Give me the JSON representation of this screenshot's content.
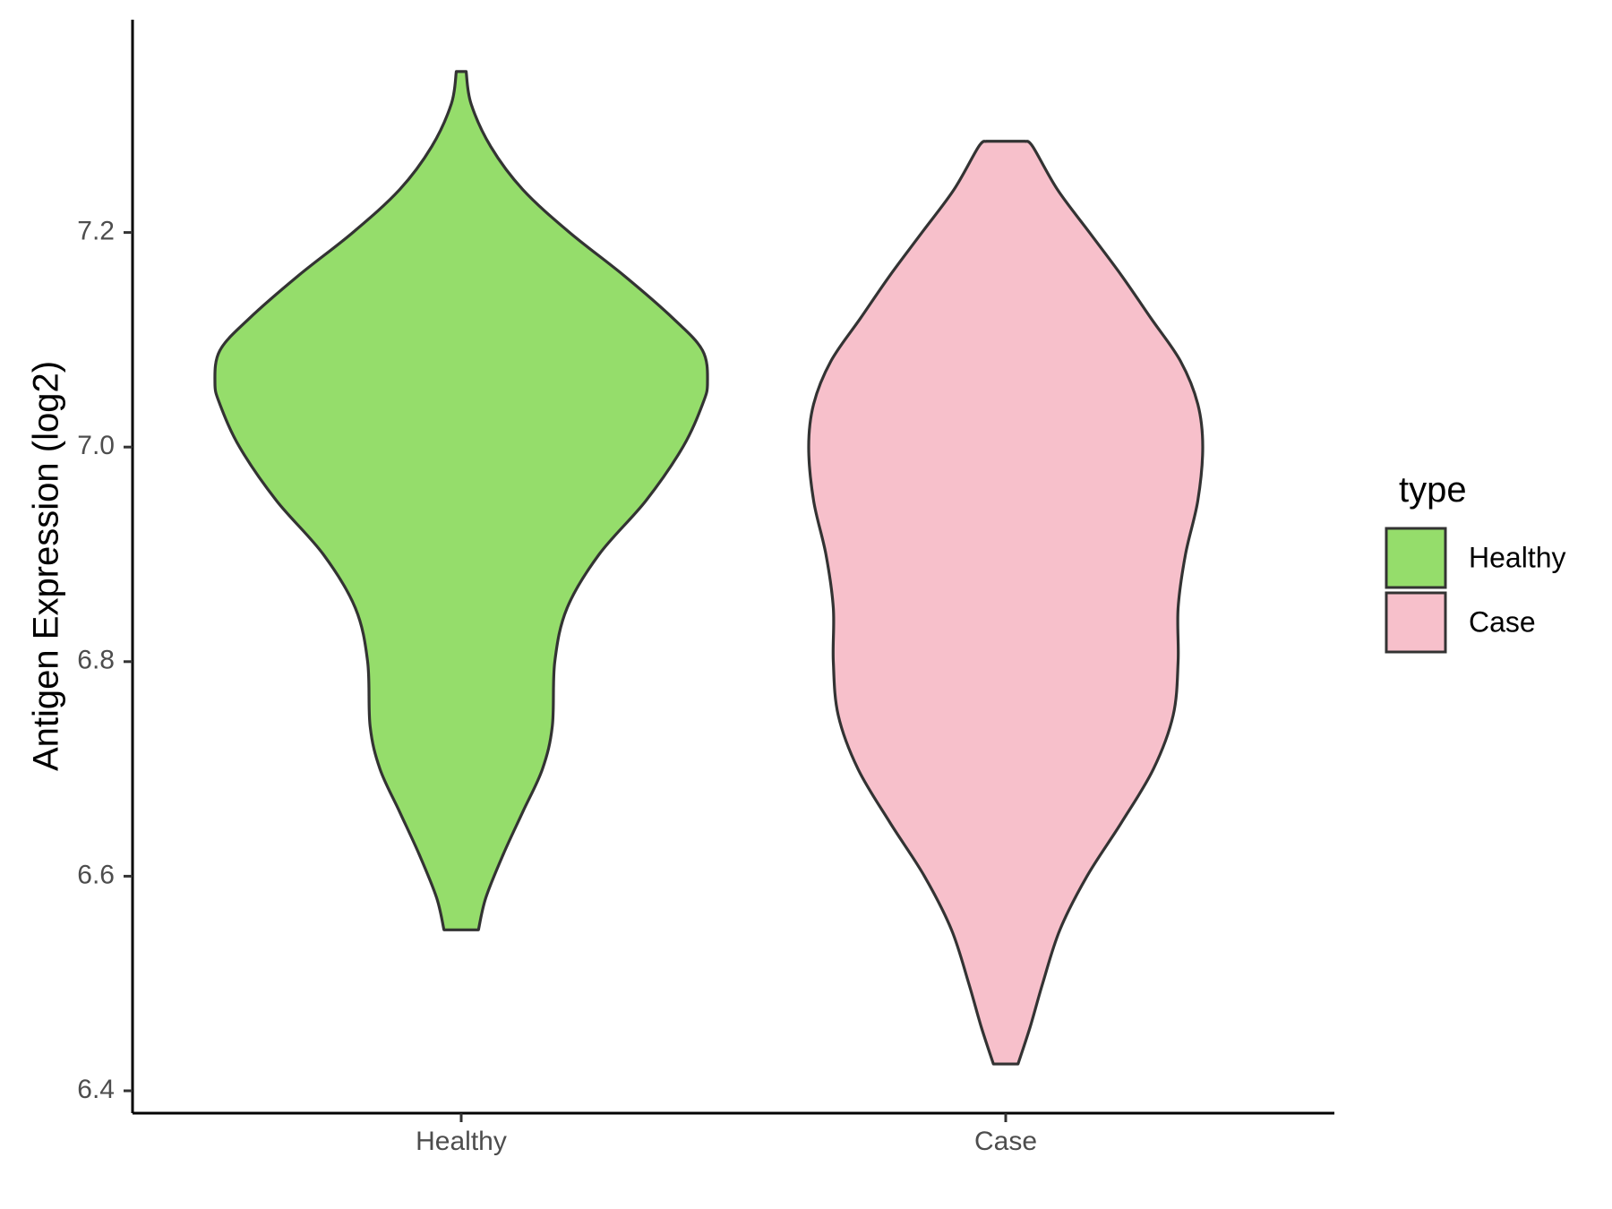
{
  "chart_data": {
    "type": "violin",
    "ylabel": "Antigen Expression (log2)",
    "xlabel": "",
    "ylim": [
      6.38,
      7.4
    ],
    "y_ticks": [
      6.4,
      6.6,
      6.8,
      7.0,
      7.2
    ],
    "y_tick_labels": [
      "6.4",
      "6.6",
      "6.8",
      "7.0",
      "7.2"
    ],
    "categories": [
      "Healthy",
      "Case"
    ],
    "grid": false,
    "legend": {
      "title": "type",
      "placement": "right",
      "entries": [
        {
          "label": "Healthy",
          "color": "#95dd6b"
        },
        {
          "label": "Case",
          "color": "#f7c0cb"
        }
      ]
    },
    "series": [
      {
        "name": "Healthy",
        "color": "#95dd6b",
        "min": 6.55,
        "max": 7.35,
        "profile": [
          [
            6.55,
            0.07
          ],
          [
            6.58,
            0.1
          ],
          [
            6.62,
            0.17
          ],
          [
            6.66,
            0.25
          ],
          [
            6.7,
            0.33
          ],
          [
            6.74,
            0.37
          ],
          [
            6.8,
            0.38
          ],
          [
            6.85,
            0.43
          ],
          [
            6.9,
            0.56
          ],
          [
            6.95,
            0.75
          ],
          [
            7.0,
            0.9
          ],
          [
            7.04,
            0.98
          ],
          [
            7.06,
            1.0
          ],
          [
            7.09,
            0.98
          ],
          [
            7.12,
            0.86
          ],
          [
            7.16,
            0.66
          ],
          [
            7.2,
            0.44
          ],
          [
            7.24,
            0.25
          ],
          [
            7.28,
            0.12
          ],
          [
            7.32,
            0.04
          ],
          [
            7.35,
            0.02
          ]
        ]
      },
      {
        "name": "Case",
        "color": "#f7c0cb",
        "min": 6.425,
        "max": 7.285,
        "profile": [
          [
            6.425,
            0.05
          ],
          [
            6.46,
            0.1
          ],
          [
            6.5,
            0.15
          ],
          [
            6.55,
            0.22
          ],
          [
            6.6,
            0.33
          ],
          [
            6.65,
            0.47
          ],
          [
            6.7,
            0.6
          ],
          [
            6.75,
            0.68
          ],
          [
            6.8,
            0.7
          ],
          [
            6.85,
            0.7
          ],
          [
            6.9,
            0.73
          ],
          [
            6.95,
            0.78
          ],
          [
            7.0,
            0.8
          ],
          [
            7.04,
            0.78
          ],
          [
            7.08,
            0.71
          ],
          [
            7.12,
            0.59
          ],
          [
            7.16,
            0.47
          ],
          [
            7.2,
            0.34
          ],
          [
            7.24,
            0.21
          ],
          [
            7.28,
            0.11
          ],
          [
            7.285,
            0.08
          ]
        ]
      }
    ]
  }
}
